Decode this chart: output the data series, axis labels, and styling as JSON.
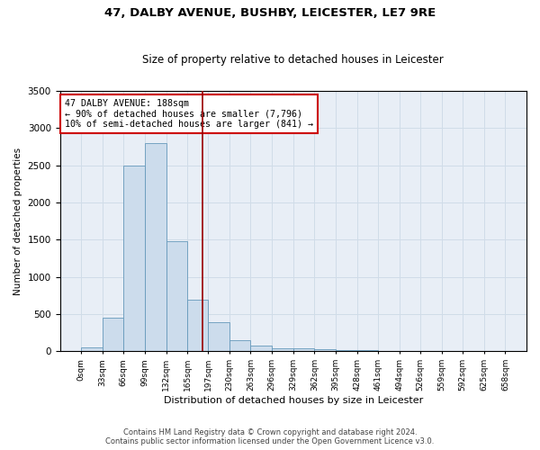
{
  "title": "47, DALBY AVENUE, BUSHBY, LEICESTER, LE7 9RE",
  "subtitle": "Size of property relative to detached houses in Leicester",
  "xlabel": "Distribution of detached houses by size in Leicester",
  "ylabel": "Number of detached properties",
  "property_label": "47 DALBY AVENUE: 188sqm",
  "annotation_line1": "← 90% of detached houses are smaller (7,796)",
  "annotation_line2": "10% of semi-detached houses are larger (841) →",
  "bin_edges": [
    0,
    33,
    66,
    99,
    132,
    165,
    197,
    230,
    263,
    296,
    329,
    362,
    395,
    428,
    461,
    494,
    526,
    559,
    592,
    625,
    658
  ],
  "bar_heights": [
    50,
    450,
    2500,
    2800,
    1480,
    700,
    390,
    150,
    80,
    45,
    40,
    30,
    20,
    15,
    10,
    10,
    8,
    5,
    3,
    2
  ],
  "bar_color": "#ccdcec",
  "bar_edge_color": "#6699bb",
  "vline_color": "#990000",
  "vline_x": 188,
  "annotation_box_facecolor": "#ffffff",
  "annotation_box_edgecolor": "#cc0000",
  "ylim": [
    0,
    3500
  ],
  "yticks": [
    0,
    500,
    1000,
    1500,
    2000,
    2500,
    3000,
    3500
  ],
  "grid_color": "#d0dce8",
  "background_color": "#e8eef6",
  "footer_line1": "Contains HM Land Registry data © Crown copyright and database right 2024.",
  "footer_line2": "Contains public sector information licensed under the Open Government Licence v3.0."
}
